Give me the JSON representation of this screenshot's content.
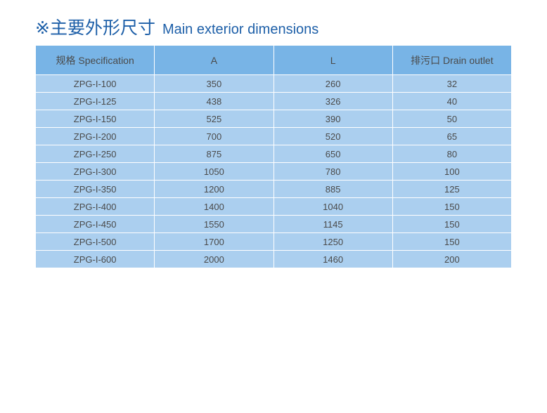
{
  "title": {
    "cn": "※主要外形尺寸",
    "en": "Main exterior dimensions"
  },
  "colors": {
    "title": "#1d5fa8",
    "header_bg": "#78b4e6",
    "row_bg": "#abcfef"
  },
  "table": {
    "headers": [
      "规格 Specification",
      "A",
      "L",
      "排污口 Drain outlet"
    ],
    "rows": [
      [
        "ZPG-I-100",
        "350",
        "260",
        "32"
      ],
      [
        "ZPG-I-125",
        "438",
        "326",
        "40"
      ],
      [
        "ZPG-I-150",
        "525",
        "390",
        "50"
      ],
      [
        "ZPG-I-200",
        "700",
        "520",
        "65"
      ],
      [
        "ZPG-I-250",
        "875",
        "650",
        "80"
      ],
      [
        "ZPG-I-300",
        "1050",
        "780",
        "100"
      ],
      [
        "ZPG-I-350",
        "1200",
        "885",
        "125"
      ],
      [
        "ZPG-I-400",
        "1400",
        "1040",
        "150"
      ],
      [
        "ZPG-I-450",
        "1550",
        "1145",
        "150"
      ],
      [
        "ZPG-I-500",
        "1700",
        "1250",
        "150"
      ],
      [
        "ZPG-I-600",
        "2000",
        "1460",
        "200"
      ]
    ]
  }
}
